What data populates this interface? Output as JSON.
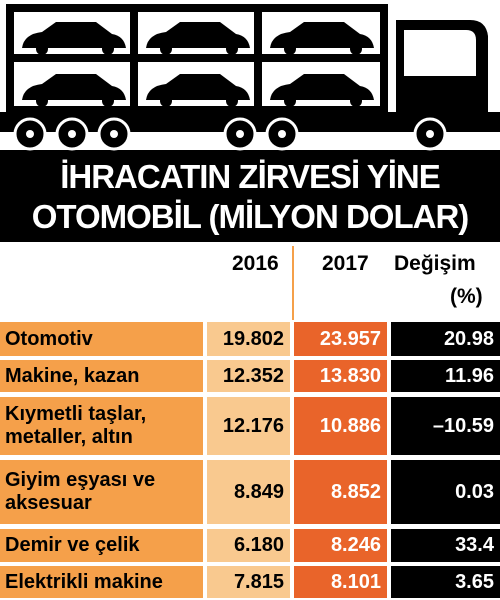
{
  "title": {
    "lines": [
      "İHRACATIN ZİRVESİ YİNE",
      "OTOMOBİL (MİLYON DOLAR)"
    ]
  },
  "table": {
    "header": {
      "years": [
        "2016",
        "2017"
      ],
      "change": [
        "Değişim",
        "(%)"
      ]
    },
    "rows": [
      [
        "Otomotiv",
        "19.802",
        "23.957",
        "20.98"
      ],
      [
        "Makine, kazan",
        "12.352",
        "13.830",
        "11.96"
      ],
      [
        "Kıymetli taşlar,\nmetaller, altın",
        "12.176",
        "10.886",
        "–10.59"
      ],
      [
        "Giyim eşyası ve\naksesuar",
        "8.849",
        "8.852",
        "0.03"
      ],
      [
        "Demir ve çelik",
        "6.180",
        "8.246",
        "33.4"
      ],
      [
        "Elektrikli makine",
        "7.815",
        "8.101",
        "3.65"
      ]
    ]
  }
}
